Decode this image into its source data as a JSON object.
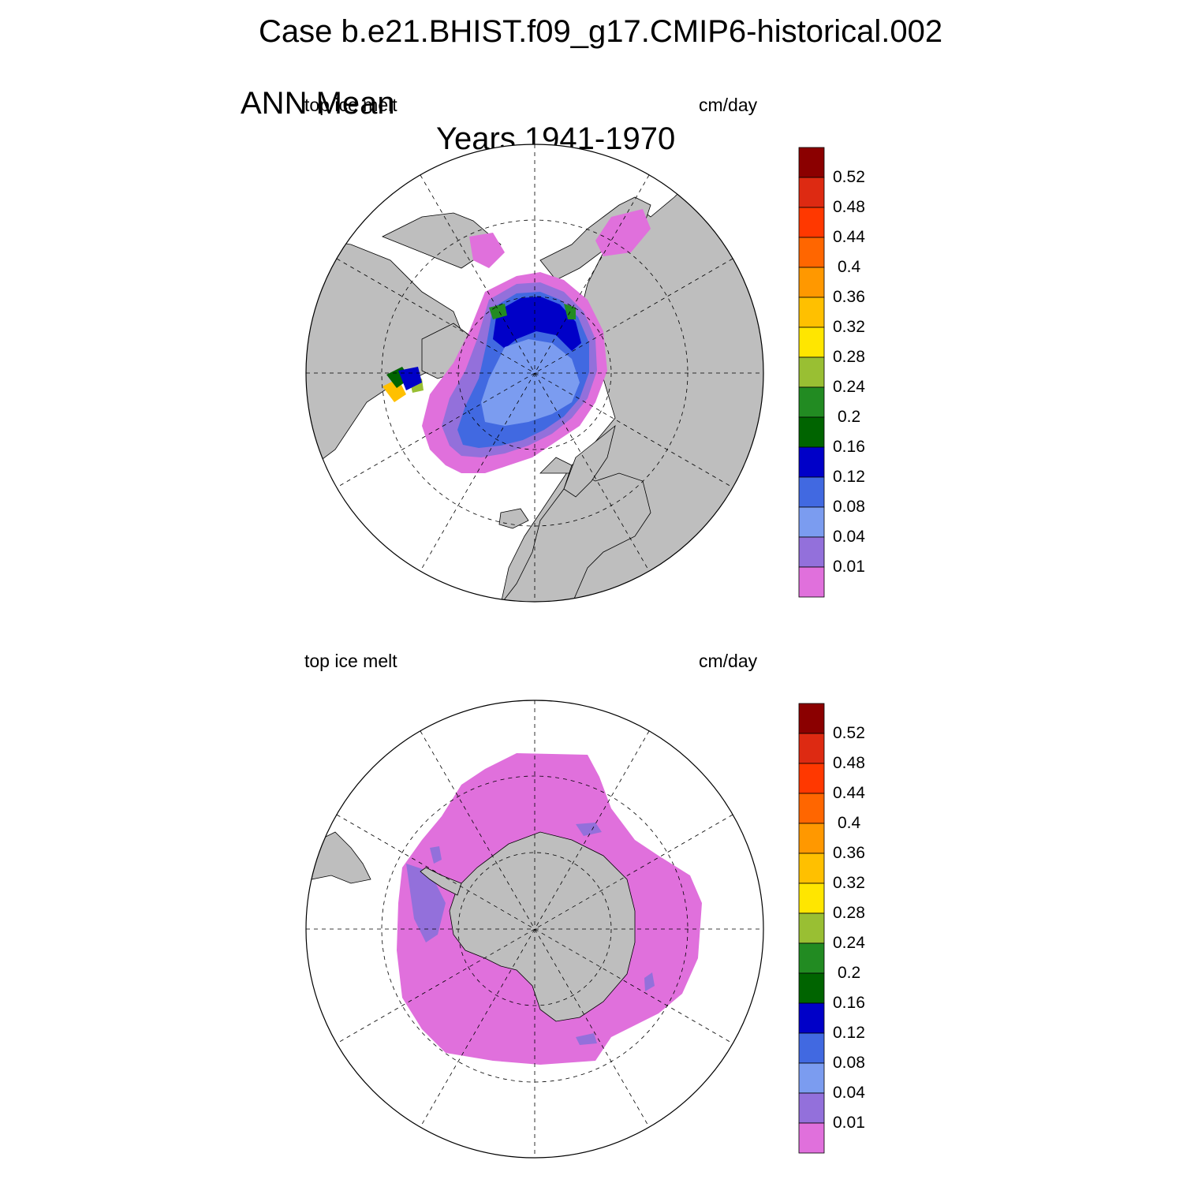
{
  "title": {
    "line1": "Case b.e21.BHIST.f09_g17.CMIP6-historical.002",
    "line2_left": "ANN Mean",
    "line2_right": "Years 1941-1970"
  },
  "panels": [
    {
      "id": "north",
      "left_label": "top ice melt",
      "right_label": "cm/day",
      "hemisphere": "Northern"
    },
    {
      "id": "south",
      "left_label": "top ice melt",
      "right_label": "cm/day",
      "hemisphere": "Southern"
    }
  ],
  "colorbar": {
    "labels": [
      "0.52",
      "0.48",
      "0.44",
      "0.4",
      "0.36",
      "0.32",
      "0.28",
      "0.24",
      "0.2",
      "0.16",
      "0.12",
      "0.08",
      "0.04",
      "0.01"
    ],
    "colors": [
      "#8b0000",
      "#dd2a12",
      "#ff3800",
      "#ff6600",
      "#ff9800",
      "#ffc000",
      "#ffe600",
      "#99bf33",
      "#228b22",
      "#006400",
      "#0000c8",
      "#4169e1",
      "#7b9cf0",
      "#9370db",
      "#e070dc"
    ]
  },
  "colors": {
    "land": "#bebebe",
    "ocean": "#ffffff",
    "grid": "#000000"
  }
}
